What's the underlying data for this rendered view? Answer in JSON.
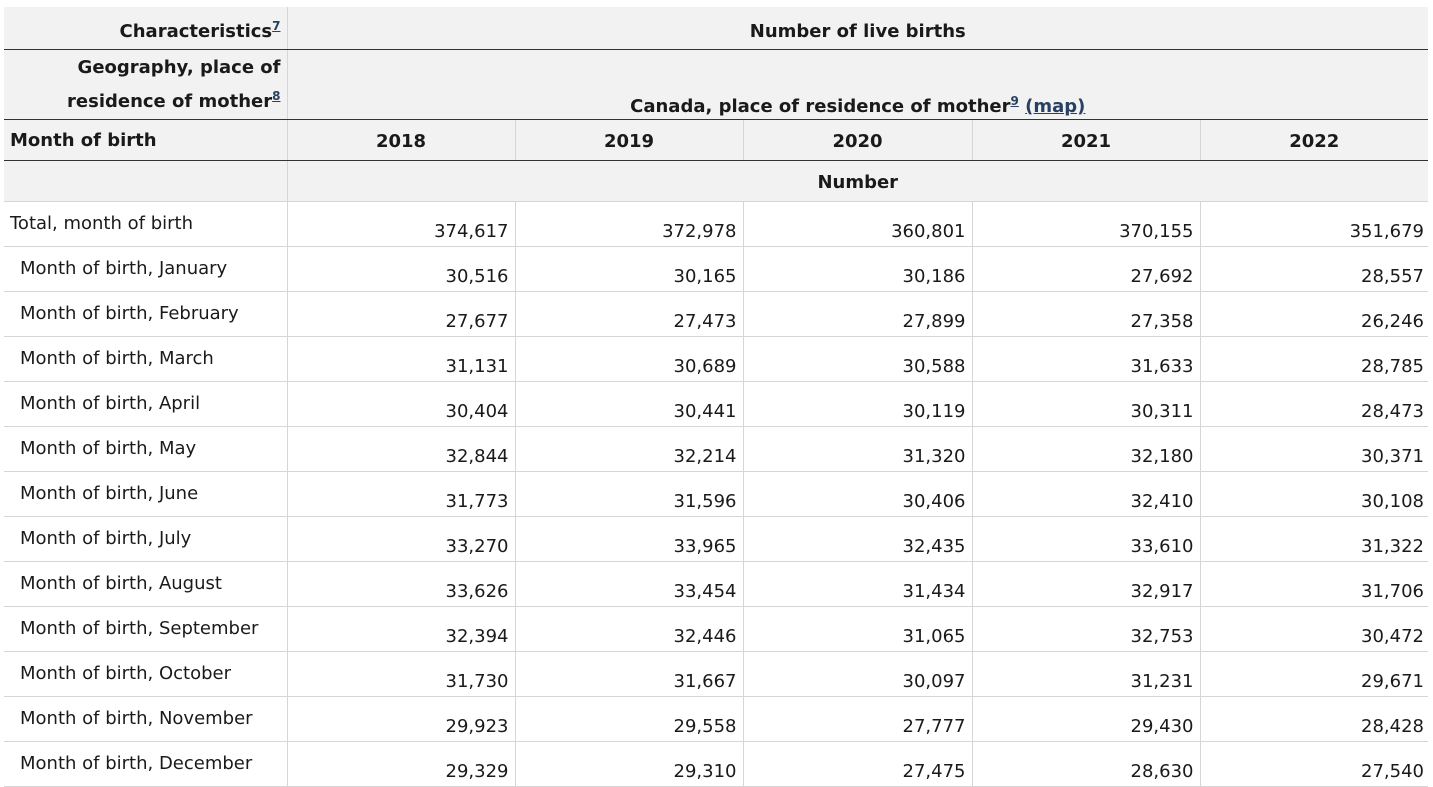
{
  "header": {
    "characteristics_label": "Characteristics",
    "characteristics_note": "7",
    "live_births_label": "Number of live births",
    "geography_label_line1": "Geography, place of",
    "geography_label_line2": "residence of mother",
    "geography_note": "8",
    "geography_value": "Canada, place of residence of mother",
    "geography_value_note": "9",
    "map_link": "(map)",
    "month_col_label": "Month of birth",
    "years": [
      "2018",
      "2019",
      "2020",
      "2021",
      "2022"
    ],
    "unit_label": "Number"
  },
  "rows": [
    {
      "label": "Total, month of birth",
      "values": [
        "374,617",
        "372,978",
        "360,801",
        "370,155",
        "351,679"
      ]
    },
    {
      "label": "Month of birth, January",
      "values": [
        "30,516",
        "30,165",
        "30,186",
        "27,692",
        "28,557"
      ]
    },
    {
      "label": "Month of birth, February",
      "values": [
        "27,677",
        "27,473",
        "27,899",
        "27,358",
        "26,246"
      ]
    },
    {
      "label": "Month of birth, March",
      "values": [
        "31,131",
        "30,689",
        "30,588",
        "31,633",
        "28,785"
      ]
    },
    {
      "label": "Month of birth, April",
      "values": [
        "30,404",
        "30,441",
        "30,119",
        "30,311",
        "28,473"
      ]
    },
    {
      "label": "Month of birth, May",
      "values": [
        "32,844",
        "32,214",
        "31,320",
        "32,180",
        "30,371"
      ]
    },
    {
      "label": "Month of birth, June",
      "values": [
        "31,773",
        "31,596",
        "30,406",
        "32,410",
        "30,108"
      ]
    },
    {
      "label": "Month of birth, July",
      "values": [
        "33,270",
        "33,965",
        "32,435",
        "33,610",
        "31,322"
      ]
    },
    {
      "label": "Month of birth, August",
      "values": [
        "33,626",
        "33,454",
        "31,434",
        "32,917",
        "31,706"
      ]
    },
    {
      "label": "Month of birth, September",
      "values": [
        "32,394",
        "32,446",
        "31,065",
        "32,753",
        "30,472"
      ]
    },
    {
      "label": "Month of birth, October",
      "values": [
        "31,730",
        "31,667",
        "30,097",
        "31,231",
        "29,671"
      ]
    },
    {
      "label": "Month of birth, November",
      "values": [
        "29,923",
        "29,558",
        "27,777",
        "29,430",
        "28,428"
      ]
    },
    {
      "label": "Month of birth, December",
      "values": [
        "29,329",
        "29,310",
        "27,475",
        "28,630",
        "27,540"
      ]
    }
  ]
}
